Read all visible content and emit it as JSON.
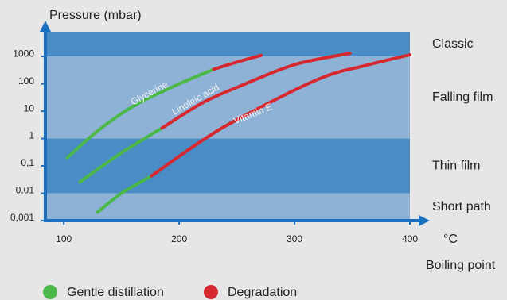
{
  "chart_data": {
    "type": "line",
    "log_y": true,
    "y_axis_label": "Pressure (mbar)",
    "x_unit": "°C",
    "x_axis_label": "Boiling point",
    "xlim": [
      84,
      400
    ],
    "xticks": [
      100,
      200,
      300,
      400
    ],
    "ylim": [
      0.001,
      8000
    ],
    "yticks": [
      {
        "value": 0.001,
        "label": "0,001"
      },
      {
        "value": 0.01,
        "label": "0,01"
      },
      {
        "value": 0.1,
        "label": "0,1"
      },
      1,
      10,
      100,
      1000
    ],
    "bands": [
      {
        "label": "Classic",
        "from": 1000,
        "to": 8000,
        "color": "#4a8cc6"
      },
      {
        "label": "Falling film",
        "from": 1,
        "to": 1000,
        "color": "#8db2d6"
      },
      {
        "label": "Thin film",
        "from": 0.01,
        "to": 1,
        "color": "#4a8cc6"
      },
      {
        "label": "Short path",
        "from": 0.001,
        "to": 0.01,
        "color": "#8db2d6"
      }
    ],
    "legend": [
      {
        "label": "Gentle distillation",
        "color": "#4cb848"
      },
      {
        "label": "Degradation",
        "color": "#d7282f"
      }
    ],
    "series": [
      {
        "name": "Glycerine",
        "gentle": {
          "x": [
            103,
            130,
            160,
            195,
            230
          ],
          "values": [
            0.2,
            2,
            15,
            80,
            340
          ]
        },
        "degradation": {
          "x": [
            230,
            250,
            271
          ],
          "values": [
            340,
            620,
            1100
          ]
        }
      },
      {
        "name": "Linoleic acid",
        "gentle": {
          "x": [
            114,
            150,
            185
          ],
          "values": [
            0.026,
            0.3,
            2.4
          ]
        },
        "degradation": {
          "x": [
            185,
            220,
            252,
            300,
            348
          ],
          "values": [
            2.4,
            20,
            80,
            500,
            1300
          ]
        }
      },
      {
        "name": "Vitamin E",
        "gentle": {
          "x": [
            129,
            150,
            176
          ],
          "values": [
            0.002,
            0.01,
            0.043
          ]
        },
        "degradation": {
          "x": [
            176,
            217,
            252,
            321,
            360,
            400
          ],
          "values": [
            0.043,
            0.7,
            5.4,
            150,
            450,
            1150
          ]
        }
      }
    ]
  }
}
